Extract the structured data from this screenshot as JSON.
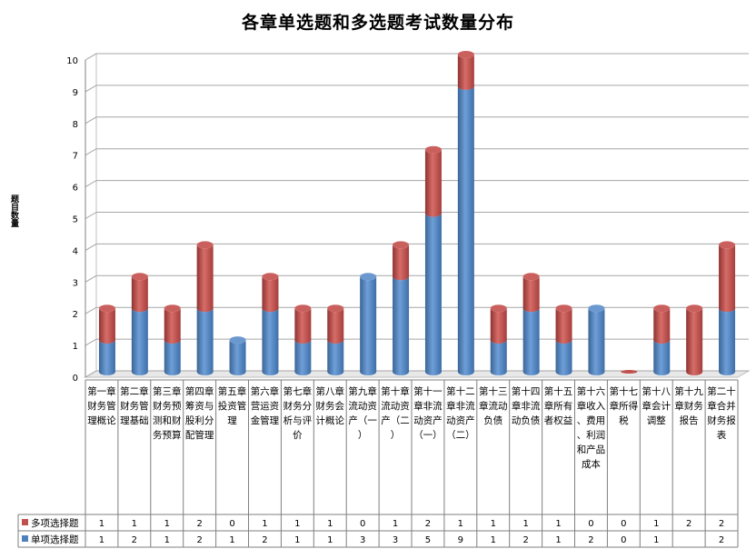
{
  "chart_data": {
    "type": "bar",
    "stacked": true,
    "style": "3d-cylinder",
    "title": "各章单选题和多选题考试数量分布",
    "ylabel": "题目数量",
    "ylim": [
      0,
      10
    ],
    "yticks": [
      0,
      1,
      2,
      3,
      4,
      5,
      6,
      7,
      8,
      9,
      10
    ],
    "grid": true,
    "legend_position": "data-table-left",
    "categories": [
      "第一章财务管理概论",
      "第二章财务管理基础",
      "第三章财务预测和财务预算",
      "第四章筹资与股利分配管理",
      "第五章投资管理",
      "第六章营运资金管理",
      "第七章财务分析与评价",
      "第八章财务会计概论",
      "第九章流动资产（一）",
      "第十章流动资产（二）",
      "第十一章非流动资产（一）",
      "第十二章非流动资产（二）",
      "第十三章流动负债",
      "第十四章非流动负债",
      "第十五章所有者权益",
      "第十六章收入、费用、利润和产品成本",
      "第十七章所得税",
      "第十八章会计调整",
      "第十九章财务报告",
      "第二十章合并财务报表"
    ],
    "series": [
      {
        "name": "单项选择题",
        "color": "#4f81bd",
        "values": [
          1,
          2,
          1,
          2,
          1,
          2,
          1,
          1,
          3,
          3,
          5,
          9,
          1,
          2,
          1,
          2,
          0,
          1,
          null,
          2
        ]
      },
      {
        "name": "多项选择题",
        "color": "#c0504d",
        "values": [
          1,
          1,
          1,
          2,
          0,
          1,
          1,
          1,
          0,
          1,
          2,
          1,
          1,
          1,
          1,
          0,
          0,
          1,
          2,
          2
        ]
      }
    ]
  }
}
